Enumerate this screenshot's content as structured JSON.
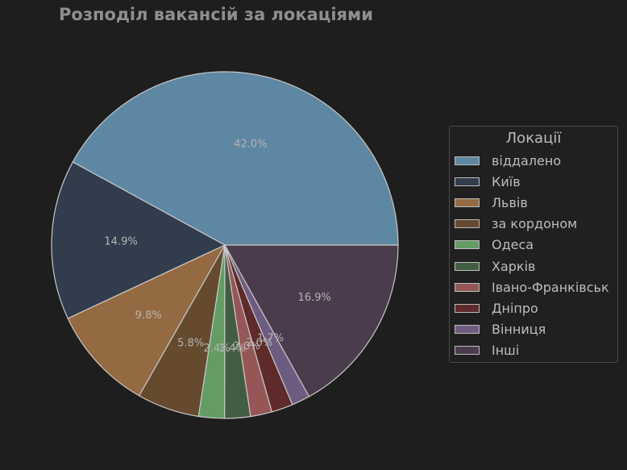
{
  "chart_data": {
    "type": "pie",
    "title": "Розподіл вакансій за локаціями",
    "slices": [
      {
        "label": "віддалено",
        "value": 42.0,
        "pct_label": "42.0%",
        "color": "#5e87a3"
      },
      {
        "label": "Київ",
        "value": 14.9,
        "pct_label": "14.9%",
        "color": "#313c4c"
      },
      {
        "label": "Львів",
        "value": 9.8,
        "pct_label": "9.8%",
        "color": "#946a42"
      },
      {
        "label": "за кордоном",
        "value": 5.8,
        "pct_label": "5.8%",
        "color": "#654a2e"
      },
      {
        "label": "Одеса",
        "value": 2.4,
        "pct_label": "2.4%",
        "color": "#649c64"
      },
      {
        "label": "Харків",
        "value": 2.4,
        "pct_label": "2.4%",
        "color": "#425e42"
      },
      {
        "label": "Івано-Франківськ",
        "value": 2.0,
        "pct_label": "2.0%",
        "color": "#965656"
      },
      {
        "label": "Дніпро",
        "value": 2.0,
        "pct_label": "2.0%",
        "color": "#5e2a2a"
      },
      {
        "label": "Вінниця",
        "value": 1.7,
        "pct_label": "1.7%",
        "color": "#6e5c80"
      },
      {
        "label": "Інші",
        "value": 16.9,
        "pct_label": "16.9%",
        "color": "#4a3c4c"
      }
    ],
    "start_angle_deg": 0,
    "direction": "counterclockwise",
    "legend": {
      "title": "Локації",
      "placement": "right"
    }
  }
}
